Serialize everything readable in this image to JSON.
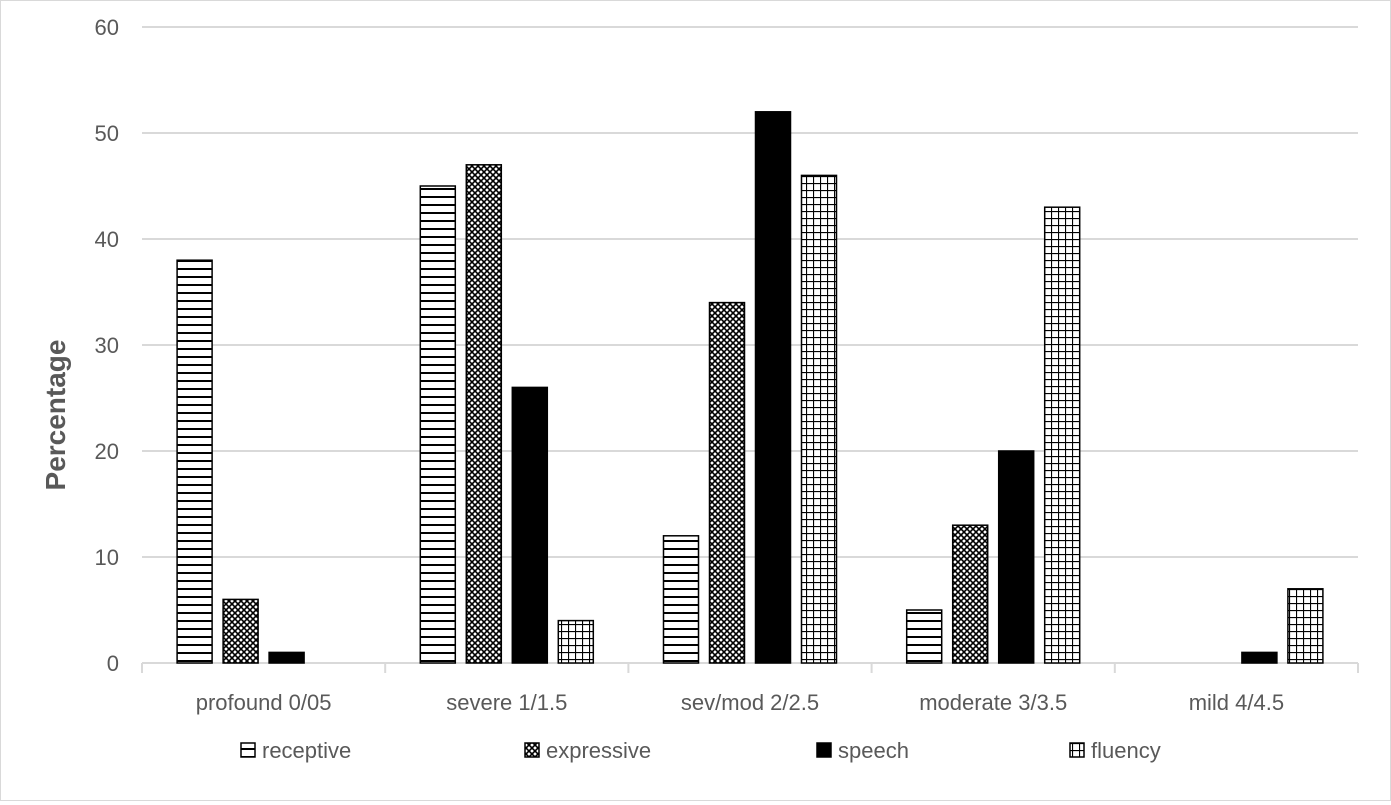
{
  "chart_data": {
    "type": "bar",
    "title": "",
    "xlabel": "",
    "ylabel": "Percentage",
    "ylim": [
      0,
      60
    ],
    "yticks": [
      0,
      10,
      20,
      30,
      40,
      50,
      60
    ],
    "grid": true,
    "legend_position": "bottom",
    "categories": [
      "profound 0/05",
      "severe 1/1.5",
      "sev/mod 2/2.5",
      "moderate 3/3.5",
      "mild 4/4.5"
    ],
    "series": [
      {
        "name": "receptive",
        "pattern": "horizontal-lines",
        "values": [
          38,
          45,
          12,
          5,
          0
        ]
      },
      {
        "name": "expressive",
        "pattern": "crosshatch",
        "values": [
          6,
          47,
          34,
          13,
          0
        ]
      },
      {
        "name": "speech",
        "pattern": "solid-black",
        "values": [
          1,
          26,
          52,
          20,
          1
        ]
      },
      {
        "name": "fluency",
        "pattern": "grid",
        "values": [
          0,
          4,
          46,
          43,
          7
        ]
      }
    ],
    "colors": {
      "grid": "#d9d9d9",
      "text": "#595959",
      "bar_outline": "#000000"
    }
  }
}
